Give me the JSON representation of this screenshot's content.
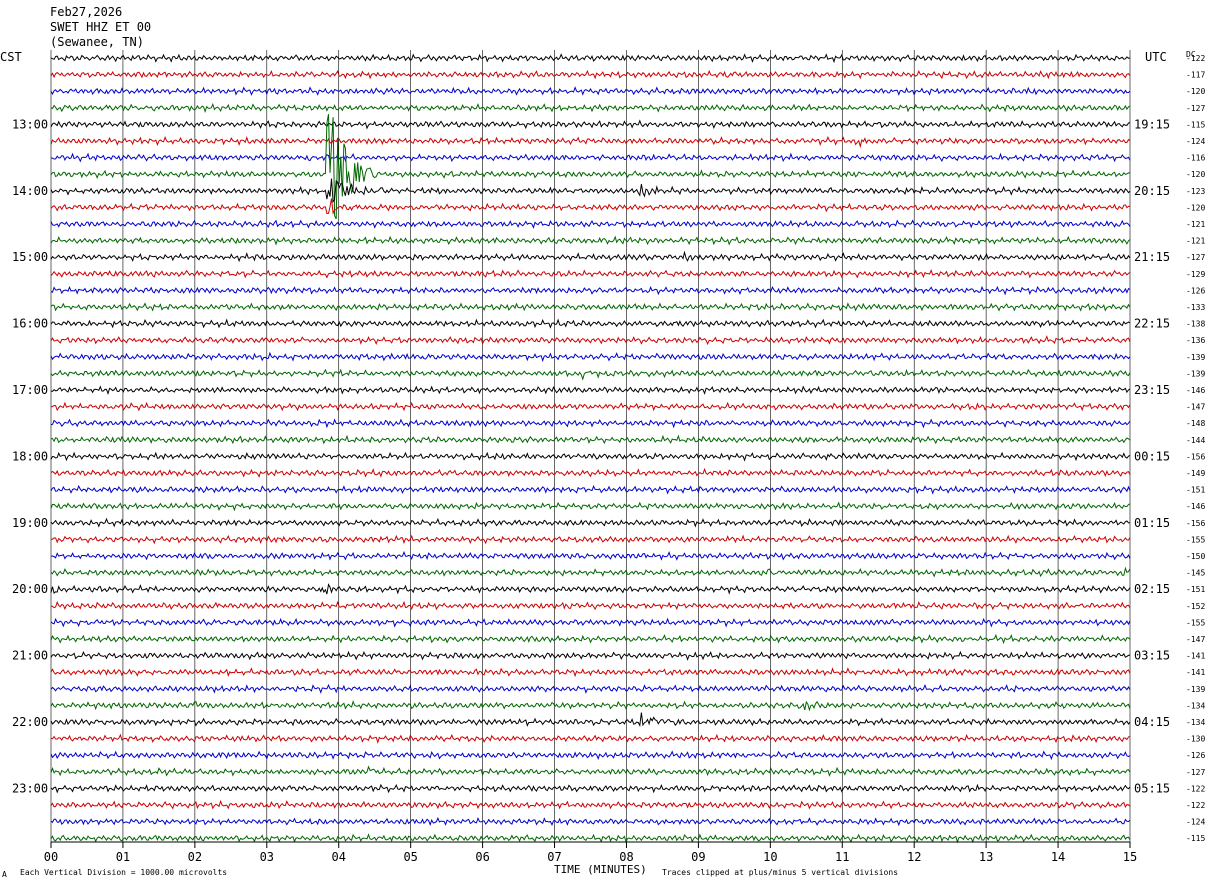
{
  "header": {
    "date": "Feb27,2026",
    "station": "SWET HHZ ET 00",
    "location": "(Sewanee, TN)"
  },
  "axes": {
    "left_zone": "CST",
    "right_zone": "UTC",
    "dc_label": "DC"
  },
  "footer": {
    "scale_note": "Each Vertical Division = 1000.00 microvolts",
    "xlabel": "TIME (MINUTES)",
    "clip_note": "Traces clipped at plus/minus 5 vertical divisions",
    "corner_mark": "A"
  },
  "colors": {
    "trace_cycle": [
      "#000000",
      "#cc0000",
      "#0000cc",
      "#006600"
    ],
    "grid": "#000000",
    "background": "#ffffff"
  },
  "chart_data": {
    "type": "line",
    "title": "",
    "xlabel": "TIME (MINUTES)",
    "ylabel": "",
    "xlim": [
      0,
      15
    ],
    "x_ticks": [
      "00",
      "01",
      "02",
      "03",
      "04",
      "05",
      "06",
      "07",
      "08",
      "09",
      "10",
      "11",
      "12",
      "13",
      "14",
      "15"
    ],
    "rows_per_hour": 4,
    "left_hour_labels": [
      "13:00",
      "14:00",
      "15:00",
      "16:00",
      "17:00",
      "18:00",
      "19:00",
      "20:00",
      "21:00",
      "22:00",
      "23:00"
    ],
    "right_hour_labels": [
      "19:15",
      "20:15",
      "21:15",
      "22:15",
      "23:15",
      "00:15",
      "01:15",
      "02:15",
      "03:15",
      "04:15",
      "05:15"
    ],
    "dc_offsets": [
      "-122",
      "-117",
      "-120",
      "-127",
      "-115",
      "-124",
      "-116",
      "-120",
      "-123",
      "-120",
      "-121",
      "-121",
      "-127",
      "-129",
      "-126",
      "-133",
      "-138",
      "-136",
      "-139",
      "-139",
      "-146",
      "-147",
      "-148",
      "-144",
      "-156",
      "-149",
      "-151",
      "-146",
      "-156",
      "-155",
      "-150",
      "-145",
      "-151",
      "-152",
      "-155",
      "-147",
      "-141",
      "-141",
      "-139",
      "-134",
      "-134",
      "-130",
      "-126",
      "-127",
      "-122",
      "-122",
      "-124",
      "-115"
    ],
    "events": [
      {
        "row": 5,
        "minute": 11.2,
        "amp": 5,
        "dur": 0.4
      },
      {
        "row": 6,
        "minute": 3.6,
        "amp": 4,
        "dur": 0.6
      },
      {
        "row": 7,
        "minute": 3.85,
        "amp": 80,
        "dur": 0.7
      },
      {
        "row": 8,
        "minute": 3.85,
        "amp": 14,
        "dur": 0.9
      },
      {
        "row": 8,
        "minute": 8.2,
        "amp": 6,
        "dur": 0.5
      },
      {
        "row": 9,
        "minute": 3.87,
        "amp": 18,
        "dur": 0.15
      },
      {
        "row": 12,
        "minute": 8.8,
        "amp": 4,
        "dur": 0.3
      },
      {
        "row": 19,
        "minute": 7.3,
        "amp": 3,
        "dur": 0.8
      },
      {
        "row": 24,
        "minute": 10.8,
        "amp": 5,
        "dur": 0.3
      },
      {
        "row": 31,
        "minute": 14.95,
        "amp": 9,
        "dur": 0.15
      },
      {
        "row": 31,
        "minute": 10.0,
        "amp": 5,
        "dur": 0.2
      },
      {
        "row": 32,
        "minute": 0.05,
        "amp": 6,
        "dur": 0.2
      },
      {
        "row": 32,
        "minute": 3.8,
        "amp": 7,
        "dur": 0.3
      },
      {
        "row": 39,
        "minute": 10.45,
        "amp": 10,
        "dur": 0.4
      },
      {
        "row": 39,
        "minute": 2.0,
        "amp": 5,
        "dur": 0.2
      },
      {
        "row": 40,
        "minute": 8.2,
        "amp": 10,
        "dur": 0.7
      },
      {
        "row": 43,
        "minute": 4.4,
        "amp": 4,
        "dur": 0.5
      }
    ]
  }
}
